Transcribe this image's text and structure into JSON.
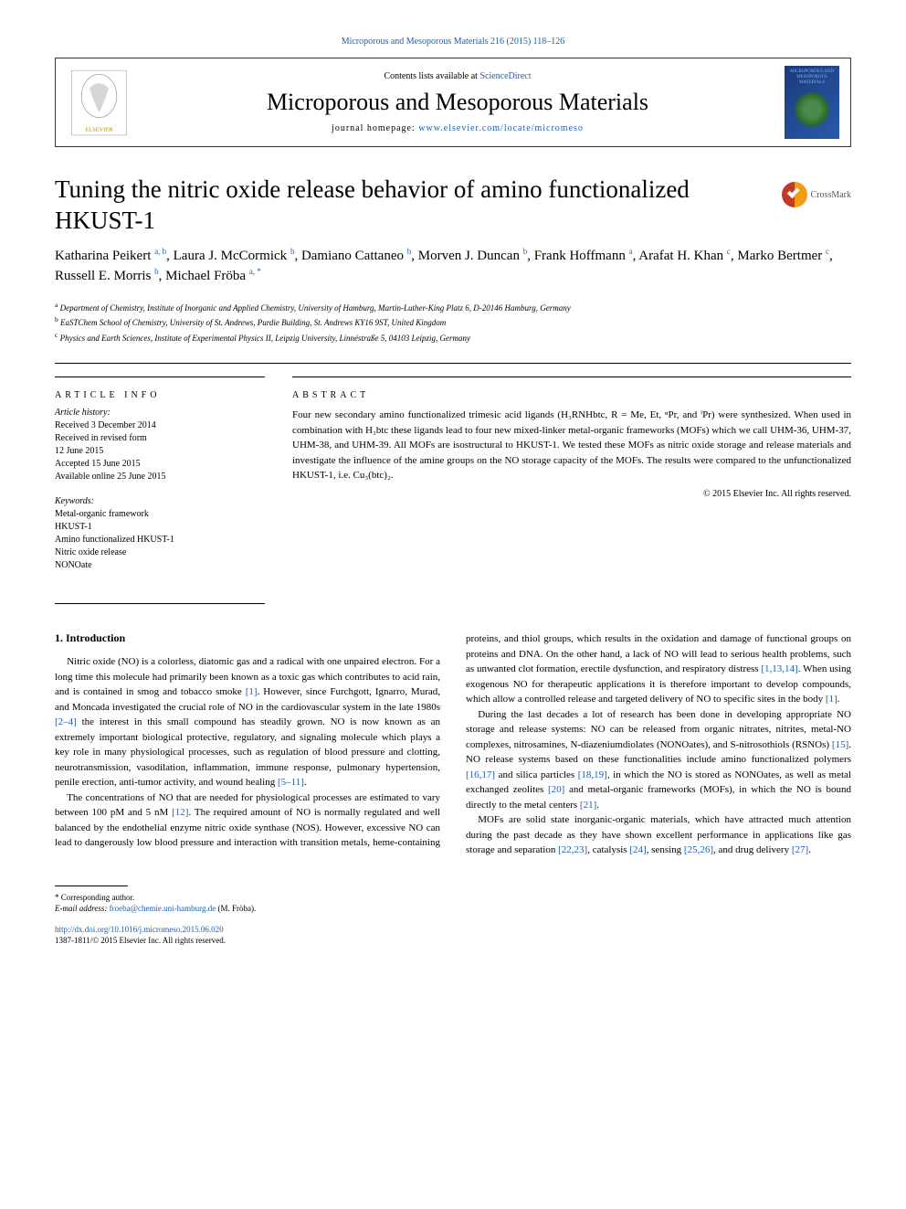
{
  "top_citation": {
    "text": "Microporous and Mesoporous Materials 216 (2015) 118–126",
    "link_color": "#1a5fb4"
  },
  "header": {
    "contents_prefix": "Contents lists available at ",
    "contents_link": "ScienceDirect",
    "journal_name": "Microporous and Mesoporous Materials",
    "homepage_prefix": "journal homepage: ",
    "homepage_url": "www.elsevier.com/locate/micromeso",
    "cover_text": "MICROPOROUS AND MESOPOROUS MATERIALS"
  },
  "crossmark": {
    "label": "CrossMark"
  },
  "title": "Tuning the nitric oxide release behavior of amino functionalized HKUST-1",
  "authors": [
    {
      "name": "Katharina Peikert",
      "sup": "a, b"
    },
    {
      "name": "Laura J. McCormick",
      "sup": "b"
    },
    {
      "name": "Damiano Cattaneo",
      "sup": "b"
    },
    {
      "name": "Morven J. Duncan",
      "sup": "b"
    },
    {
      "name": "Frank Hoffmann",
      "sup": "a"
    },
    {
      "name": "Arafat H. Khan",
      "sup": "c"
    },
    {
      "name": "Marko Bertmer",
      "sup": "c"
    },
    {
      "name": "Russell E. Morris",
      "sup": "b"
    },
    {
      "name": "Michael Fröba",
      "sup": "a, *"
    }
  ],
  "affiliations": [
    {
      "sup": "a",
      "text": "Department of Chemistry, Institute of Inorganic and Applied Chemistry, University of Hamburg, Martin-Luther-King Platz 6, D-20146 Hamburg, Germany"
    },
    {
      "sup": "b",
      "text": "EaSTChem School of Chemistry, University of St. Andrews, Purdie Building, St. Andrews KY16 9ST, United Kingdom"
    },
    {
      "sup": "c",
      "text": "Physics and Earth Sciences, Institute of Experimental Physics II, Leipzig University, Linnéstraße 5, 04103 Leipzig, Germany"
    }
  ],
  "article_info": {
    "head": "ARTICLE INFO",
    "history_label": "Article history:",
    "history": [
      "Received 3 December 2014",
      "Received in revised form",
      "12 June 2015",
      "Accepted 15 June 2015",
      "Available online 25 June 2015"
    ],
    "keywords_label": "Keywords:",
    "keywords": [
      "Metal-organic framework",
      "HKUST-1",
      "Amino functionalized HKUST-1",
      "Nitric oxide release",
      "NONOate"
    ]
  },
  "abstract": {
    "head": "ABSTRACT",
    "text": "Four new secondary amino functionalized trimesic acid ligands (H₃RNHbtc, R = Me, Et, ⁿPr, and ⁱPr) were synthesized. When used in combination with H₃btc these ligands lead to four new mixed-linker metal-organic frameworks (MOFs) which we call UHM-36, UHM-37, UHM-38, and UHM-39. All MOFs are isostructural to HKUST-1. We tested these MOFs as nitric oxide storage and release materials and investigate the influence of the amine groups on the NO storage capacity of the MOFs. The results were compared to the unfunctionalized HKUST-1, i.e. Cu₃(btc)₂.",
    "copyright": "© 2015 Elsevier Inc. All rights reserved."
  },
  "body": {
    "heading": "1. Introduction",
    "p1_a": "Nitric oxide (NO) is a colorless, diatomic gas and a radical with one unpaired electron. For a long time this molecule had primarily been known as a toxic gas which contributes to acid rain, and is contained in smog and tobacco smoke ",
    "p1_ref1": "[1]",
    "p1_b": ". However, since Furchgott, Ignarro, Murad, and Moncada investigated the crucial role of NO in the cardiovascular system in the late 1980s ",
    "p1_ref2": "[2–4]",
    "p1_c": " the interest in this small compound has steadily grown. NO is now known as an extremely important biological protective, regulatory, and signaling molecule which plays a key role in many physiological processes, such as regulation of blood pressure and clotting, neurotransmission, vasodilation, inflammation, immune response, pulmonary hypertension, penile erection, anti-tumor activity, and wound healing ",
    "p1_ref3": "[5–11]",
    "p1_d": ".",
    "p2_a": "The concentrations of NO that are needed for physiological processes are estimated to vary between 100 pM and 5 nM ",
    "p2_ref1": "[12]",
    "p2_b": ". The required amount of NO is normally regulated and well balanced by the endothelial enzyme nitric oxide synthase (NOS). However, excessive NO can lead to dangerously low blood pressure and interaction with transition metals, heme-containing proteins, and thiol groups, which results in the oxidation and damage of functional groups on proteins and DNA. On the other hand, a lack of NO will lead to serious health problems, such as unwanted clot formation, erectile dysfunction, and respiratory distress ",
    "p2_ref2": "[1,13,14]",
    "p2_c": ". When using exogenous NO for therapeutic applications it is therefore important to develop compounds, which allow a controlled release and targeted delivery of NO to specific sites in the body ",
    "p2_ref3": "[1]",
    "p2_d": ".",
    "p3_a": "During the last decades a lot of research has been done in developing appropriate NO storage and release systems: NO can be released from organic nitrates, nitrites, metal-NO complexes, nitrosamines, N-diazeniumdiolates (NONOates), and S-nitrosothiols (RSNOs) ",
    "p3_ref1": "[15]",
    "p3_b": ". NO release systems based on these functionalities include amino functionalized polymers ",
    "p3_ref2": "[16,17]",
    "p3_c": " and silica particles ",
    "p3_ref3": "[18,19]",
    "p3_d": ", in which the NO is stored as NONOates, as well as metal exchanged zeolites ",
    "p3_ref4": "[20]",
    "p3_e": " and metal-organic frameworks (MOFs), in which the NO is bound directly to the metal centers ",
    "p3_ref5": "[21]",
    "p3_f": ".",
    "p4_a": "MOFs are solid state inorganic-organic materials, which have attracted much attention during the past decade as they have shown excellent performance in applications like gas storage and separation ",
    "p4_ref1": "[22,23]",
    "p4_b": ", catalysis ",
    "p4_ref2": "[24]",
    "p4_c": ", sensing ",
    "p4_ref3": "[25,26]",
    "p4_d": ", and drug delivery ",
    "p4_ref4": "[27]",
    "p4_e": "."
  },
  "footer": {
    "corresponding": "* Corresponding author.",
    "email_label": "E-mail address: ",
    "email": "froeba@chemie.uni-hamburg.de",
    "email_suffix": " (M. Fröba).",
    "doi": "http://dx.doi.org/10.1016/j.micromeso.2015.06.020",
    "issn": "1387-1811/© 2015 Elsevier Inc. All rights reserved."
  }
}
